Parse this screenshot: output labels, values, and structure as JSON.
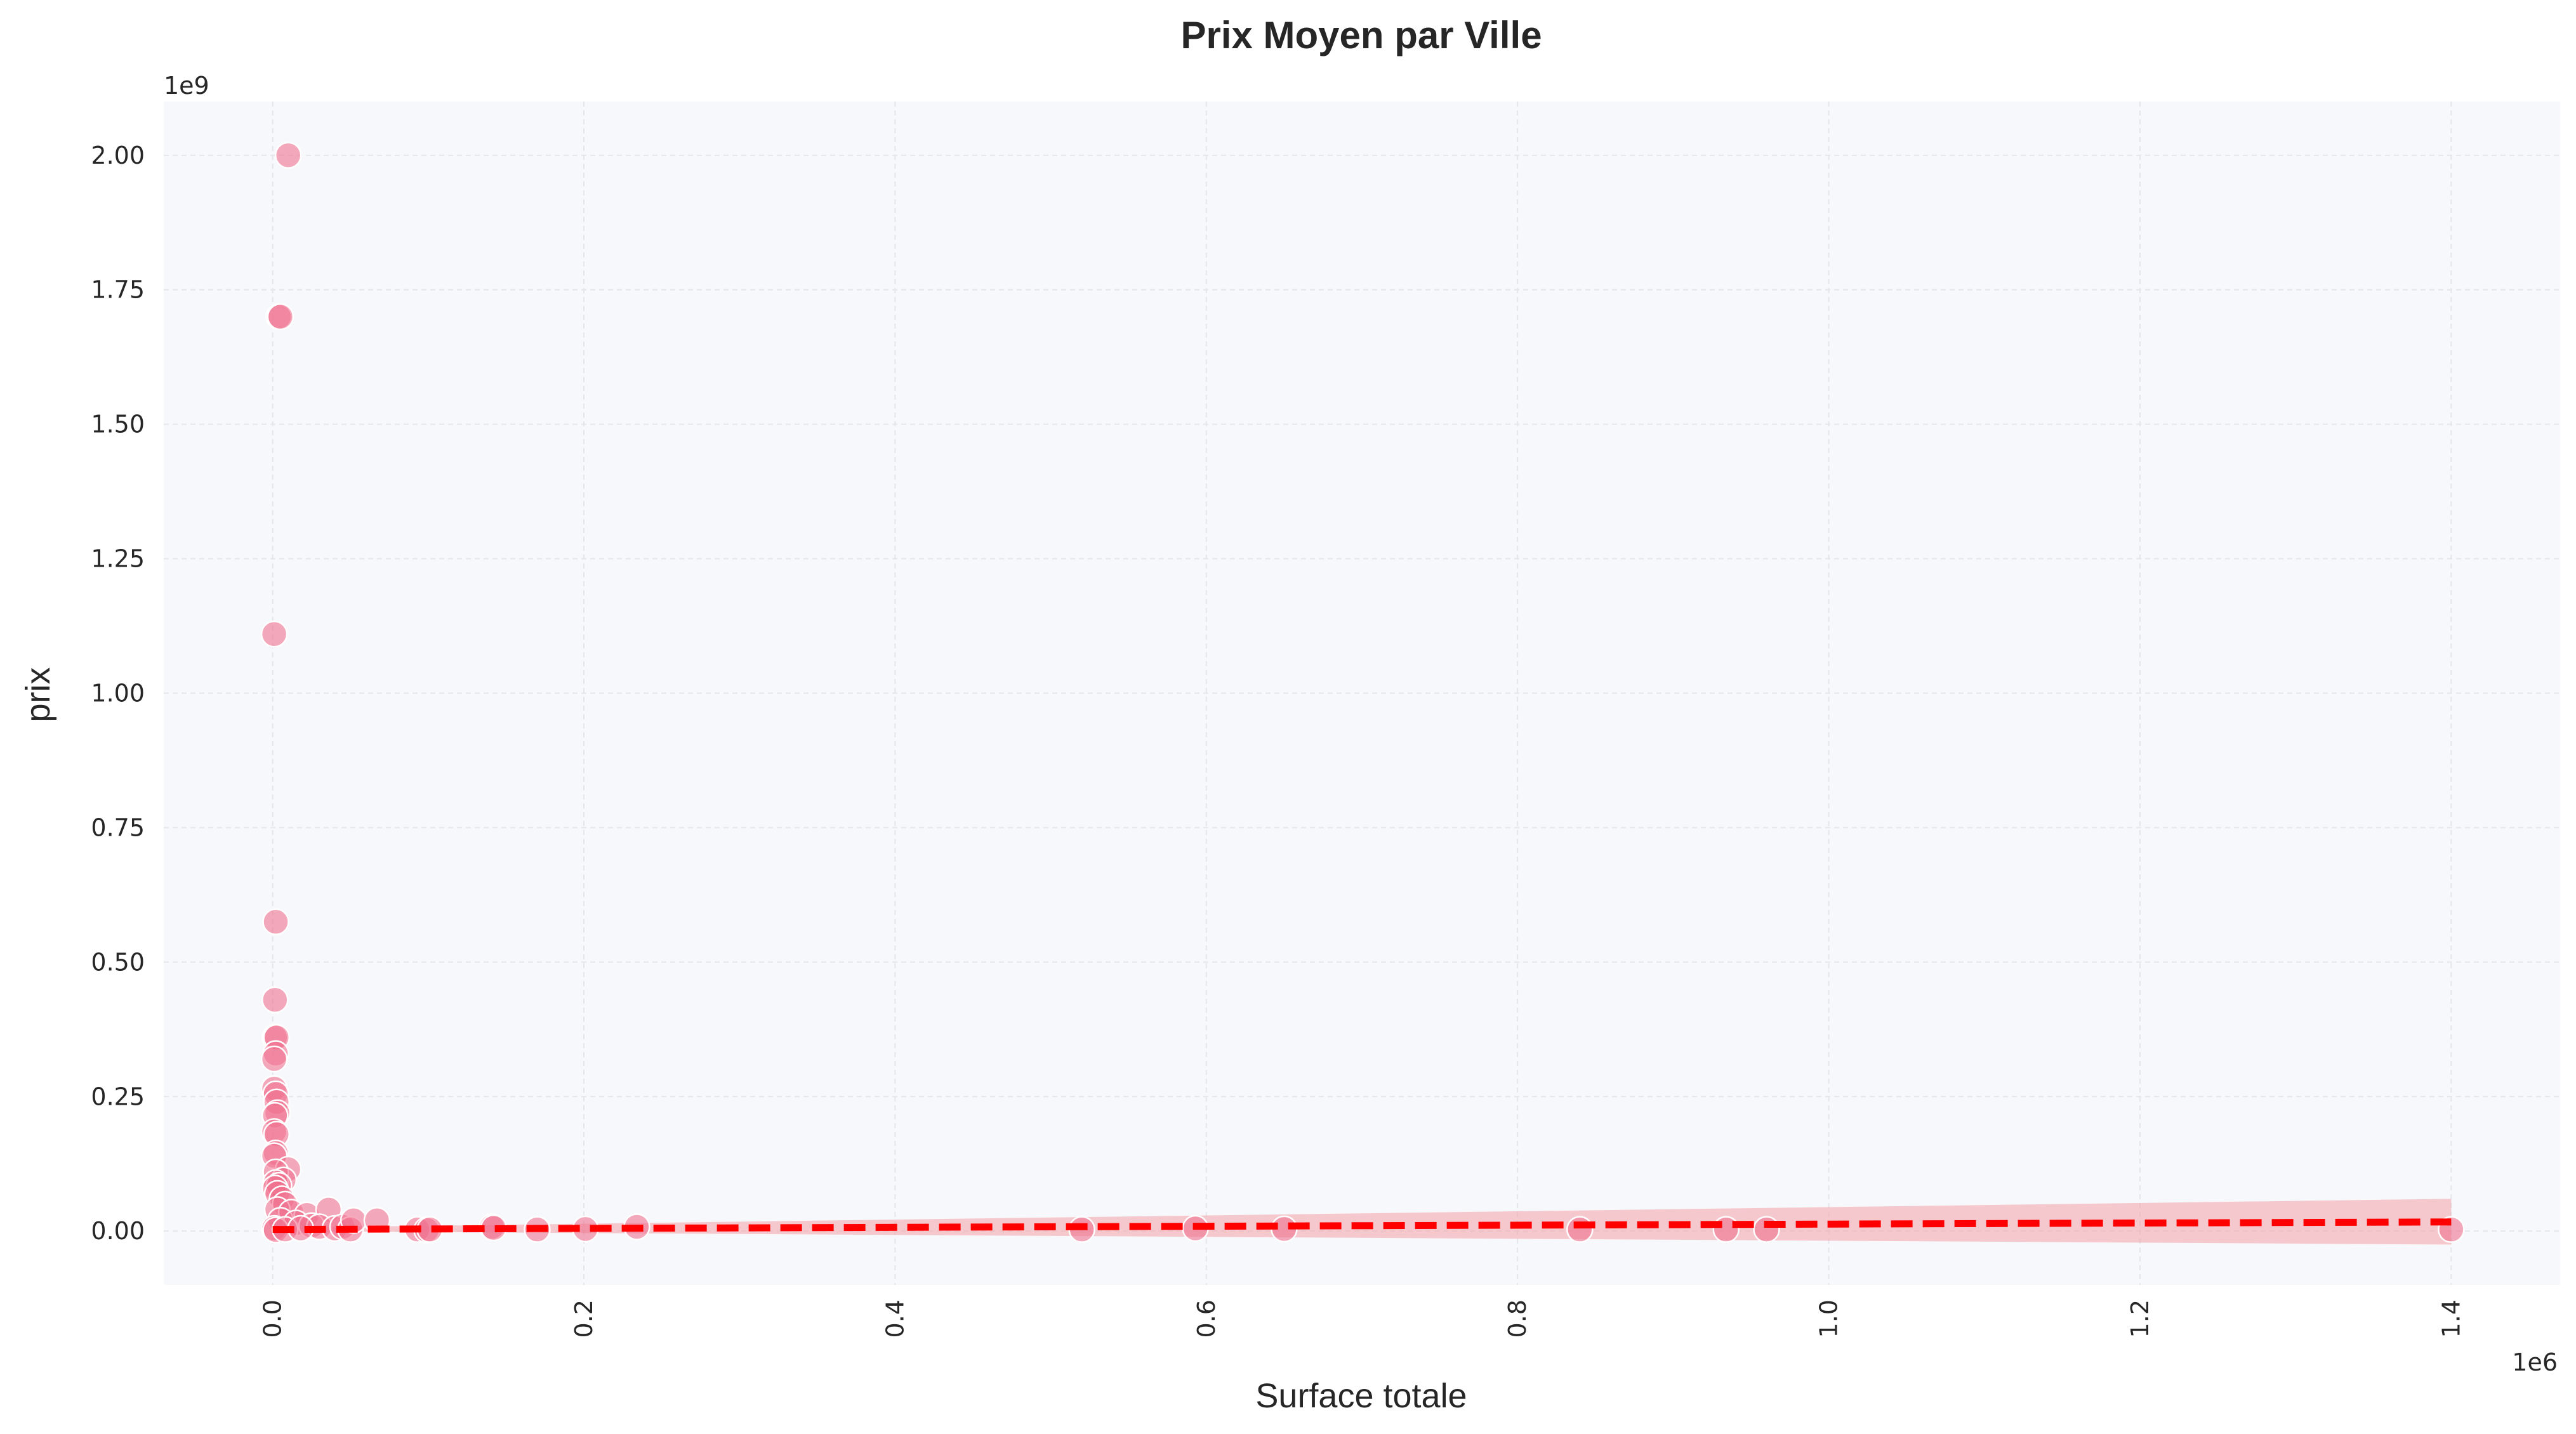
{
  "chart_data": {
    "type": "scatter",
    "title": "Prix Moyen par Ville",
    "xlabel": "Surface totale",
    "ylabel": "prix",
    "x_offset_label": "1e6",
    "y_offset_label": "1e9",
    "xlim": [
      -70000,
      1470000
    ],
    "ylim": [
      -100000000,
      2100000000
    ],
    "x_ticks": [
      0,
      200000,
      400000,
      600000,
      800000,
      1000000,
      1200000,
      1400000
    ],
    "x_tick_labels": [
      "0.0",
      "0.2",
      "0.4",
      "0.6",
      "0.8",
      "1.0",
      "1.2",
      "1.4"
    ],
    "y_ticks": [
      0,
      250000000,
      500000000,
      750000000,
      1000000000,
      1250000000,
      1500000000,
      1750000000,
      2000000000
    ],
    "y_tick_labels": [
      "0.00",
      "0.25",
      "0.50",
      "0.75",
      "1.00",
      "1.25",
      "1.50",
      "1.75",
      "2.00"
    ],
    "grid": true,
    "colors": {
      "points": "#f0728f",
      "regression_line": "#ff0000",
      "confidence_band": "#f4a0a8",
      "plot_background": "#f7f8fb",
      "grid": "#e4e6ec"
    },
    "series": [
      {
        "points": [
          [
            10000,
            2000000000
          ],
          [
            4000,
            1700000000
          ],
          [
            5000,
            1700000000
          ],
          [
            1000,
            1110000000
          ],
          [
            2000,
            575000000
          ],
          [
            1500,
            430000000
          ],
          [
            1500,
            360000000
          ],
          [
            2500,
            360000000
          ],
          [
            2000,
            330000000
          ],
          [
            1000,
            320000000
          ],
          [
            1000,
            265000000
          ],
          [
            2000,
            255000000
          ],
          [
            2500,
            240000000
          ],
          [
            3000,
            220000000
          ],
          [
            1500,
            215000000
          ],
          [
            1000,
            185000000
          ],
          [
            2500,
            180000000
          ],
          [
            2000,
            145000000
          ],
          [
            1000,
            140000000
          ],
          [
            10000,
            115000000
          ],
          [
            2000,
            110000000
          ],
          [
            7000,
            95000000
          ],
          [
            2000,
            90000000
          ],
          [
            4000,
            85000000
          ],
          [
            1500,
            80000000
          ],
          [
            3000,
            70000000
          ],
          [
            6000,
            60000000
          ],
          [
            8000,
            50000000
          ],
          [
            3000,
            40000000
          ],
          [
            12000,
            35000000
          ],
          [
            22000,
            30000000
          ],
          [
            36000,
            40000000
          ],
          [
            5000,
            20000000
          ],
          [
            15000,
            15000000
          ],
          [
            25000,
            10000000
          ],
          [
            30000,
            8000000
          ],
          [
            1000,
            5000000
          ],
          [
            2000,
            2000000
          ],
          [
            8000,
            3000000
          ],
          [
            18000,
            5000000
          ],
          [
            40000,
            5000000
          ],
          [
            45000,
            8000000
          ],
          [
            50000,
            3000000
          ],
          [
            52000,
            20000000
          ],
          [
            67000,
            20000000
          ],
          [
            93000,
            3000000
          ],
          [
            99000,
            2000000
          ],
          [
            101000,
            3000000
          ],
          [
            141000,
            8000000
          ],
          [
            142000,
            6000000
          ],
          [
            170000,
            3000000
          ],
          [
            201000,
            4000000
          ],
          [
            234000,
            8000000
          ],
          [
            520000,
            3000000
          ],
          [
            593000,
            5000000
          ],
          [
            650000,
            4000000
          ],
          [
            840000,
            3000000
          ],
          [
            934000,
            3000000
          ],
          [
            960000,
            3000000
          ],
          [
            1400000,
            3000000
          ]
        ]
      }
    ],
    "regression": {
      "x": [
        0,
        1400000
      ],
      "y": [
        3000000,
        17000000
      ],
      "band_upper": [
        6000000,
        60000000
      ],
      "band_lower": [
        0,
        -25000000
      ]
    }
  }
}
